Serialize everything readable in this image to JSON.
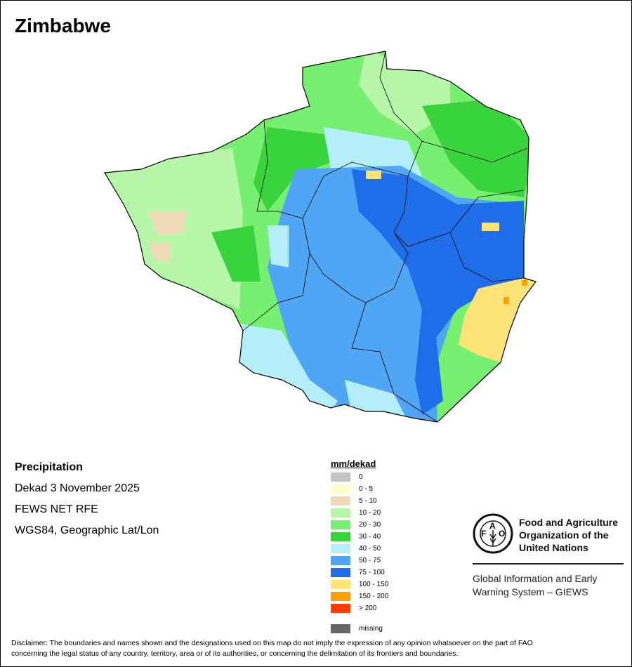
{
  "title": "Zimbabwe",
  "info": {
    "variable": "Precipitation",
    "period": "Dekad 3 November 2025",
    "source": "FEWS NET RFE",
    "projection": "WGS84, Geographic Lat/Lon"
  },
  "legend": {
    "title": "mm/dekad",
    "items": [
      {
        "label": "0",
        "color": "#c4c4c4"
      },
      {
        "label": "0 - 5",
        "color": "#fffdcc"
      },
      {
        "label": "5 - 10",
        "color": "#eed9b8"
      },
      {
        "label": "10 - 20",
        "color": "#b8f7aa"
      },
      {
        "label": "20 - 30",
        "color": "#77ef70"
      },
      {
        "label": "30 - 40",
        "color": "#39d43d"
      },
      {
        "label": "40 - 50",
        "color": "#b4eef8"
      },
      {
        "label": "50 - 75",
        "color": "#50a5f5"
      },
      {
        "label": "75 - 100",
        "color": "#1f6de8"
      },
      {
        "label": "100 - 150",
        "color": "#fee376"
      },
      {
        "label": "150 - 200",
        "color": "#fe9f02"
      },
      {
        "label": "> 200",
        "color": "#fe3b00"
      }
    ],
    "missing": {
      "label": "missing",
      "color": "#666666"
    }
  },
  "org": {
    "logo_letters": "FAO FIAT PANIS",
    "name_line1": "Food and Agriculture",
    "name_line2": "Organization of the",
    "name_line3": "United Nations",
    "system_line1": "Global Information and Early",
    "system_line2": "Warning System – GIEWS"
  },
  "disclaimer_line1": "Disclaimer: The boundaries and names shown and the designations used on this map do not imply the expression of any opinion whatsoever on the part of FAO",
  "disclaimer_line2": "concerning the legal status of any country, territory, area or of its authorities, or concerning the delimitation of its frontiers and boundaries."
}
